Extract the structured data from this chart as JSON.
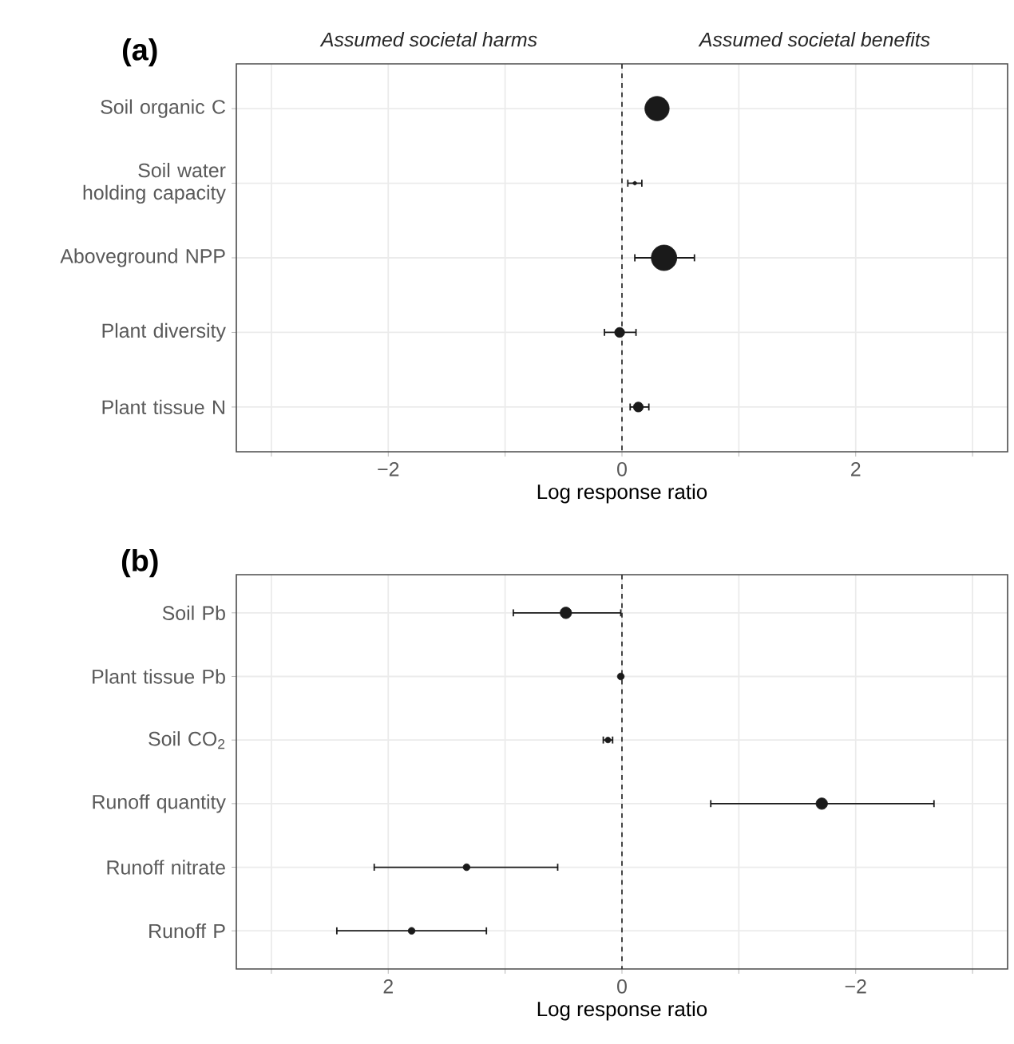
{
  "chart_data": [
    {
      "type": "bubble",
      "title": "(a)",
      "orientation": "horizontal",
      "annotations": [
        "Assumed societal harms",
        "Assumed societal benefits"
      ],
      "categories": [
        "Soil organic C",
        "Soil water holding capacity",
        "Aboveground NPP",
        "Plant diversity",
        "Plant tissue N"
      ],
      "series": [
        {
          "color": "#1a1a1a",
          "values": [
            0.3,
            0.11,
            0.36,
            -0.02,
            0.14
          ],
          "sizes": [
            0.91,
            0.02,
            1,
            0.15,
            0.15
          ],
          "errors": [
            null,
            [
              0.05,
              0.17
            ],
            [
              0.11,
              0.62
            ],
            [
              -0.15,
              0.12
            ],
            [
              0.07,
              0.23
            ]
          ]
        }
      ],
      "marker": "circle",
      "xlim": [
        -3.3,
        3.3
      ],
      "xticks": [
        {
          "value": -3,
          "label": null
        },
        {
          "value": -2,
          "label": "−2"
        },
        {
          "value": -1,
          "label": null
        },
        0,
        {
          "value": 1,
          "label": null
        },
        2,
        {
          "value": 3,
          "label": null
        }
      ],
      "xlabel": "Log response ratio",
      "grid": true,
      "ref_lines": [
        {
          "axis": "x",
          "value": 0,
          "line_style": "dashed",
          "color": "#333333"
        }
      ]
    },
    {
      "type": "bubble",
      "title": "(b)",
      "orientation": "horizontal",
      "categories": [
        "Soil Pb",
        "Plant tissue Pb",
        "Soil CO$_{2}$",
        "Runoff quantity",
        "Runoff nitrate",
        "Runoff P"
      ],
      "series": [
        {
          "color": "#1a1a1a",
          "values": [
            0.48,
            0.01,
            0.12,
            -1.71,
            1.33,
            1.8
          ],
          "sizes": [
            1,
            0.36,
            0.25,
            1,
            0.36,
            0.36
          ],
          "errors": [
            [
              0.01,
              0.93
            ],
            null,
            [
              0.08,
              0.16
            ],
            [
              -2.67,
              -0.76
            ],
            [
              0.55,
              2.12
            ],
            [
              1.16,
              2.44
            ]
          ]
        }
      ],
      "marker": "circle",
      "xlim": [
        3.3,
        -3.3
      ],
      "xticks": [
        {
          "value": 3,
          "label": null
        },
        2,
        {
          "value": 1,
          "label": null
        },
        0,
        {
          "value": -1,
          "label": null
        },
        {
          "value": -2,
          "label": "−2"
        },
        {
          "value": -3,
          "label": null
        }
      ],
      "xlabel": "Log response ratio",
      "grid": true,
      "ref_lines": [
        {
          "axis": "x",
          "value": 0,
          "line_style": "dashed",
          "color": "#333333"
        }
      ]
    }
  ]
}
